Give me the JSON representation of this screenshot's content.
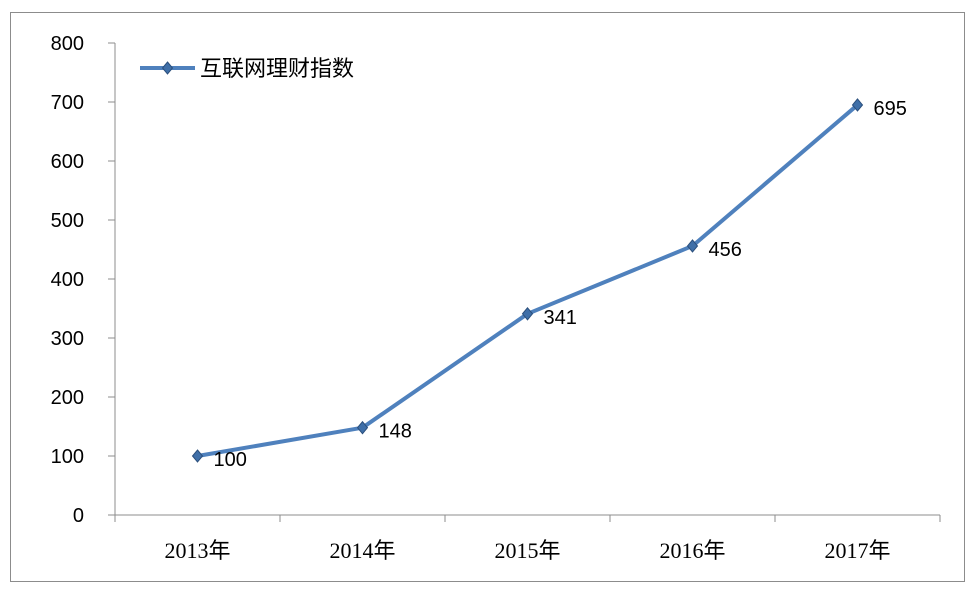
{
  "chart_data": {
    "type": "line",
    "categories": [
      "2013年",
      "2014年",
      "2015年",
      "2016年",
      "2017年"
    ],
    "series": [
      {
        "name": "互联网理财指数",
        "values": [
          100,
          148,
          341,
          456,
          695
        ],
        "color": "#4f81bd"
      }
    ],
    "data_labels": [
      "100",
      "148",
      "341",
      "456",
      "695"
    ],
    "y_ticks": [
      "0",
      "100",
      "200",
      "300",
      "400",
      "500",
      "600",
      "700",
      "800"
    ],
    "ylim": [
      0,
      800
    ],
    "grid": false,
    "legend_position": "top-left",
    "marker": "diamond"
  }
}
